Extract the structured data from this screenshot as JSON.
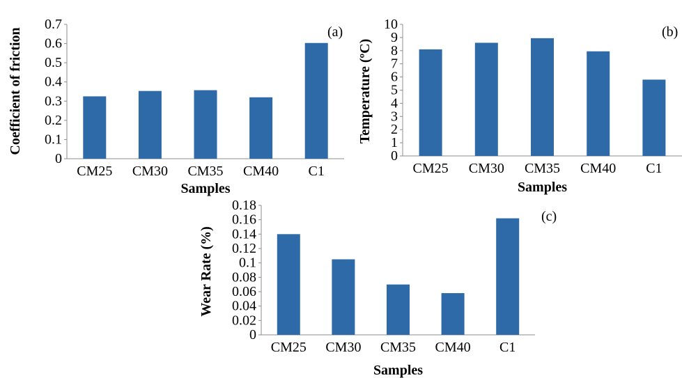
{
  "chart_data": [
    {
      "type": "bar",
      "panel": "(a)",
      "categories": [
        "CM25",
        "CM30",
        "CM35",
        "CM40",
        "C1"
      ],
      "values": [
        0.325,
        0.353,
        0.357,
        0.32,
        0.603
      ],
      "xlabel": "Samples",
      "ylabel": "Coefficient of friction",
      "ylim": [
        0,
        0.7
      ],
      "yticks": [
        "0",
        "0.1",
        "0.2",
        "0.3",
        "0.4",
        "0.5",
        "0.6",
        "0.7"
      ],
      "bar_color": "#2e6aa7",
      "grid": false
    },
    {
      "type": "bar",
      "panel": "(b)",
      "categories": [
        "CM25",
        "CM30",
        "CM35",
        "CM40",
        "C1"
      ],
      "values": [
        8.1,
        8.6,
        8.95,
        7.95,
        5.8
      ],
      "xlabel": "Samples",
      "ylabel": "Temperature (ºC)",
      "ylim": [
        0,
        10
      ],
      "yticks": [
        "0",
        "1",
        "2",
        "3",
        "4",
        "5",
        "6",
        "7",
        "8",
        "9",
        "10"
      ],
      "bar_color": "#2e6aa7",
      "grid": false
    },
    {
      "type": "bar",
      "panel": "(c)",
      "categories": [
        "CM25",
        "CM30",
        "CM35",
        "CM40",
        "C1"
      ],
      "values": [
        0.14,
        0.105,
        0.07,
        0.058,
        0.162
      ],
      "xlabel": "Samples",
      "ylabel": "Wear Rate (%)",
      "ylim": [
        0,
        0.18
      ],
      "yticks": [
        "0",
        "0.02",
        "0.04",
        "0.06",
        "0.08",
        "0.1",
        "0.12",
        "0.14",
        "0.16",
        "0.18"
      ],
      "bar_color": "#2e6aa7",
      "grid": false
    }
  ]
}
